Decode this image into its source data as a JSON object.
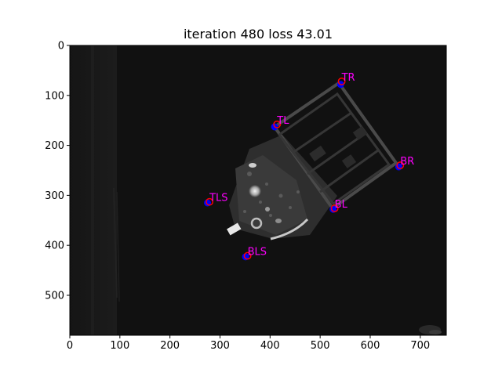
{
  "chart_data": {
    "type": "scatter",
    "title": "iteration 480 loss 43.01",
    "xlabel": "",
    "ylabel": "",
    "xlim": [
      0,
      752
    ],
    "ylim": [
      580,
      0
    ],
    "y_inverted": true,
    "xticks": [
      0,
      100,
      200,
      300,
      400,
      500,
      600,
      700
    ],
    "yticks": [
      0,
      100,
      200,
      300,
      400,
      500
    ],
    "grid": false,
    "background": "grayscale camera image of an object with a rectangular frame",
    "points": [
      {
        "label": "TR",
        "true": [
          541,
          78
        ],
        "pred": [
          543,
          72
        ]
      },
      {
        "label": "TL",
        "true": [
          409,
          163
        ],
        "pred": [
          414,
          158
        ]
      },
      {
        "label": "BR",
        "true": [
          657,
          243
        ],
        "pred": [
          660,
          240
        ]
      },
      {
        "label": "TLS",
        "true": [
          275,
          315
        ],
        "pred": [
          279,
          313
        ]
      },
      {
        "label": "BL",
        "true": [
          526,
          328
        ],
        "pred": [
          529,
          326
        ]
      },
      {
        "label": "BLS",
        "true": [
          351,
          423
        ],
        "pred": [
          355,
          421
        ]
      }
    ],
    "colors": {
      "true_marker": "#0000ff",
      "pred_marker": "#ff0000",
      "label": "#ff00ff"
    }
  }
}
